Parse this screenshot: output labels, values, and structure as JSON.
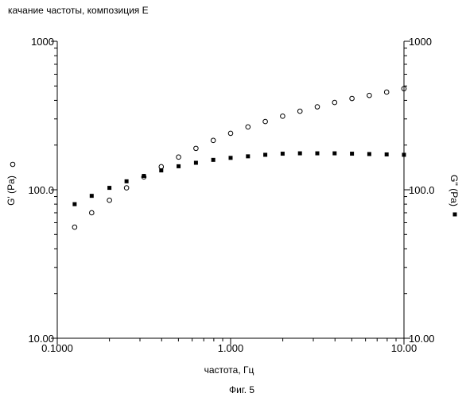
{
  "chart_data": {
    "type": "scatter",
    "title": "качание частоты, композиция Е",
    "caption": "Фиг. 5",
    "xlabel": "частота, Гц",
    "ylabel_left": "G' (Pa)",
    "ylabel_right": "G'' (Pa)",
    "x_scale": "log",
    "y_scale": "log",
    "xlim": [
      0.1,
      10
    ],
    "ylim": [
      10,
      1000
    ],
    "x_ticks": [
      "0.1000",
      "1.000",
      "10.00"
    ],
    "y_ticks": [
      "10.00",
      "100.0",
      "1000"
    ],
    "grid": false,
    "series": [
      {
        "name": "G' (Pa)",
        "marker": "open-circle",
        "x": [
          0.126,
          0.158,
          0.2,
          0.251,
          0.316,
          0.398,
          0.501,
          0.631,
          0.794,
          1.0,
          1.259,
          1.585,
          1.995,
          2.512,
          3.162,
          3.981,
          5.012,
          6.31,
          7.943,
          10.0
        ],
        "y": [
          56,
          70,
          85,
          103,
          122,
          143,
          166,
          190,
          215,
          240,
          265,
          288,
          313,
          338,
          362,
          387,
          412,
          432,
          455,
          480
        ]
      },
      {
        "name": "G'' (Pa)",
        "marker": "filled-square",
        "x": [
          0.126,
          0.158,
          0.2,
          0.251,
          0.316,
          0.398,
          0.501,
          0.631,
          0.794,
          1.0,
          1.259,
          1.585,
          1.995,
          2.512,
          3.162,
          3.981,
          5.012,
          6.31,
          7.943,
          10.0
        ],
        "y": [
          80,
          91,
          103,
          114,
          124,
          135,
          144,
          152,
          159,
          164,
          168,
          172,
          175,
          176,
          176,
          176,
          175,
          174,
          173,
          172
        ]
      }
    ]
  }
}
